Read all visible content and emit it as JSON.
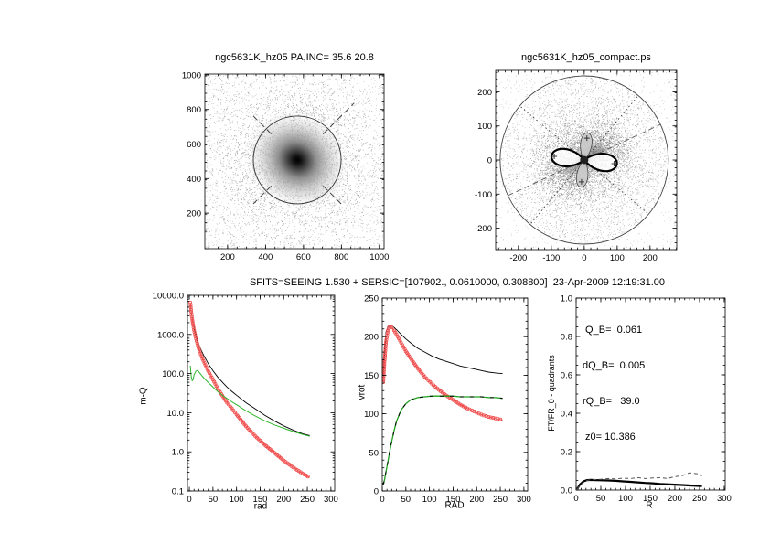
{
  "colors": {
    "black": "#000000",
    "red_symbols": "#f05050",
    "green_line": "#2db52d",
    "green_dashed": "#1fa01f",
    "gray_dashed": "#555555",
    "background": "#ffffff"
  },
  "chart_data": [
    {
      "id": "galaxy_image",
      "type": "scatter",
      "title": "ngc5631K_hz05 PA,INC= 35.6 20.8",
      "xticks": {
        "values": [
          200,
          400,
          600,
          800,
          1000
        ],
        "labels": [
          "200",
          "400",
          "600",
          "800",
          "1000"
        ]
      },
      "yticks": {
        "values": [
          200,
          400,
          600,
          800,
          1000
        ],
        "labels": [
          "200",
          "400",
          "600",
          "800",
          "1000"
        ]
      },
      "description": "grayscale galaxy image: dense dark core with diffuse halo of noise points, fitted circle overlay and dashed diagonal position-angle marks",
      "overlay": {
        "blob_center": [
          567,
          508
        ],
        "circle_radius_data": 232,
        "dash_angles_deg": [
          45,
          135,
          225,
          315
        ]
      }
    },
    {
      "id": "compact",
      "type": "scatter",
      "title": "ngc5631K_hz05_compact.ps",
      "xticks": {
        "values": [
          -200,
          -100,
          0,
          100,
          200
        ],
        "labels": [
          "-200",
          "-100",
          "0",
          "100",
          "200"
        ]
      },
      "yticks": {
        "values": [
          -200,
          -100,
          0,
          100,
          200
        ],
        "labels": [
          "-200",
          "-100",
          "0",
          "100",
          "200"
        ]
      },
      "description": "point cloud concentrated at origin inside circle of radius 250, four-lobed (quadrant) pattern at center with dotted radial lines and dashed diameter",
      "overlay": {
        "circle_radius_data": 250,
        "petal_len_horizontal_data": 100,
        "petal_len_vertical_data": 80,
        "tilt_deg": 7
      }
    },
    {
      "id": "profile",
      "type": "line",
      "title": "SFITS=SEEING 1.530 + SERSIC=[107902., 0.0610000, 0.308800]  23-Apr-2009 12:19:31.00",
      "xlabel": "rad",
      "ylabel": "m-Q",
      "yscale": "log",
      "xlim": [
        0,
        300
      ],
      "ylim": [
        0.1,
        10000
      ],
      "xticks": {
        "values": [
          0,
          50,
          100,
          150,
          200,
          250,
          300
        ],
        "labels": [
          "0",
          "50",
          "100",
          "150",
          "200",
          "250",
          "300"
        ]
      },
      "yticks": {
        "values": [
          0.1,
          1,
          10,
          100,
          1000,
          10000
        ],
        "labels": [
          "0.1",
          "1.0",
          "10.0",
          "100.0",
          "1000.0",
          "10000.0"
        ]
      },
      "series": [
        {
          "name": "total model (black)",
          "color": "#000000",
          "style": "solid",
          "width": 0.9,
          "x": [
            2,
            4,
            6,
            8,
            10,
            14,
            18,
            22,
            26,
            30,
            40,
            50,
            60,
            70,
            80,
            90,
            100,
            120,
            140,
            160,
            180,
            200,
            220,
            240,
            255
          ],
          "y": [
            6500,
            3900,
            2600,
            1900,
            1450,
            950,
            650,
            480,
            375,
            300,
            180,
            118,
            82,
            60,
            45,
            35,
            28,
            18,
            12.5,
            8.6,
            6.2,
            4.6,
            3.6,
            2.9,
            2.6
          ]
        },
        {
          "name": "bulge profile (red symbols)",
          "color": "#f05050",
          "style": "symbols",
          "x": [
            2,
            4,
            6,
            8,
            10,
            14,
            18,
            22,
            26,
            30,
            40,
            50,
            60,
            70,
            80,
            90,
            100,
            120,
            140,
            160,
            180,
            200,
            220,
            240,
            255
          ],
          "y": [
            6500,
            3800,
            2500,
            1750,
            1300,
            780,
            520,
            370,
            270,
            210,
            115,
            70,
            42,
            27,
            18,
            13,
            9,
            4.5,
            2.5,
            1.5,
            0.95,
            0.6,
            0.4,
            0.28,
            0.22
          ]
        },
        {
          "name": "disk profile (green)",
          "color": "#2db52d",
          "style": "solid",
          "width": 1,
          "x": [
            2,
            4,
            6,
            8,
            10,
            14,
            18,
            22,
            26,
            30,
            40,
            50,
            60,
            70,
            80,
            90,
            100,
            120,
            140,
            160,
            180,
            200,
            220,
            240,
            255
          ],
          "y": [
            160,
            85,
            66,
            70,
            92,
            116,
            119,
            104,
            90,
            79,
            59,
            45,
            35,
            28,
            23,
            19,
            16,
            11.2,
            8.2,
            6.2,
            4.9,
            4.0,
            3.3,
            2.8,
            2.5
          ]
        }
      ]
    },
    {
      "id": "rotation",
      "type": "line",
      "xlabel": "RAD",
      "ylabel": "vrot",
      "xlim": [
        0,
        300
      ],
      "ylim": [
        0,
        250
      ],
      "xticks": {
        "values": [
          0,
          50,
          100,
          150,
          200,
          250,
          300
        ],
        "labels": [
          "0",
          "50",
          "100",
          "150",
          "200",
          "250",
          "300"
        ]
      },
      "yticks": {
        "values": [
          0,
          50,
          100,
          150,
          200,
          250
        ],
        "labels": [
          "0",
          "50",
          "100",
          "150",
          "200",
          "250"
        ]
      },
      "series": [
        {
          "name": "total rotation curve (black)",
          "color": "#000000",
          "style": "solid",
          "width": 0.9,
          "x": [
            2,
            5,
            8,
            12,
            16,
            20,
            25,
            30,
            40,
            50,
            60,
            75,
            90,
            105,
            120,
            135,
            150,
            165,
            180,
            195,
            210,
            225,
            240,
            255
          ],
          "y": [
            150,
            186,
            206,
            213,
            215,
            214,
            212,
            209,
            203,
            197,
            192,
            185,
            180,
            175,
            171,
            168,
            165,
            162,
            160,
            158,
            156,
            154,
            153,
            152
          ]
        },
        {
          "name": "bulge rotation (red symbols)",
          "color": "#f05050",
          "style": "symbols",
          "x": [
            2,
            5,
            8,
            12,
            16,
            20,
            25,
            30,
            40,
            50,
            60,
            75,
            90,
            105,
            120,
            135,
            150,
            165,
            180,
            195,
            210,
            225,
            240,
            255
          ],
          "y": [
            141,
            170,
            193,
            208,
            213,
            212,
            208,
            203,
            192,
            181,
            172,
            159,
            148,
            139,
            131,
            124,
            118,
            112,
            107,
            103,
            99,
            96,
            94,
            92
          ]
        },
        {
          "name": "disk rotation (green dashed)",
          "color": "#1fa01f",
          "style": "dashed-mixed",
          "x": [
            2,
            5,
            8,
            12,
            16,
            20,
            25,
            30,
            40,
            50,
            60,
            75,
            90,
            105,
            120,
            135,
            150,
            165,
            180,
            195,
            210,
            225,
            240,
            255
          ],
          "y": [
            8,
            15,
            25,
            38,
            52,
            64,
            78,
            90,
            105,
            113,
            118,
            121,
            122,
            123,
            123,
            123,
            123,
            122,
            122,
            122,
            122,
            121,
            121,
            120
          ]
        }
      ]
    },
    {
      "id": "fourier",
      "type": "line",
      "xlabel": "R",
      "ylabel": "FT/FR_0 - quadrants",
      "xlim": [
        0,
        300
      ],
      "ylim": [
        0,
        1
      ],
      "xticks": {
        "values": [
          0,
          50,
          100,
          150,
          200,
          250,
          300
        ],
        "labels": [
          "0",
          "50",
          "100",
          "150",
          "200",
          "250",
          "300"
        ]
      },
      "yticks": {
        "values": [
          0,
          0.2,
          0.4,
          0.6,
          0.8,
          1.0
        ],
        "labels": [
          "0.0",
          "0.2",
          "0.4",
          "0.6",
          "0.8",
          "1.0"
        ]
      },
      "annotations": [
        " Q_B=  0.061",
        "dQ_B=  0.005",
        "rQ_B=   39.0",
        " z0= 10.386"
      ],
      "series": [
        {
          "name": "quadrant Fourier amplitude (solid)",
          "color": "#000000",
          "style": "solid",
          "width": 2.2,
          "x": [
            2,
            8,
            15,
            22,
            30,
            40,
            50,
            65,
            80,
            95,
            110,
            125,
            140,
            155,
            170,
            185,
            200,
            215,
            230,
            245,
            255
          ],
          "y": [
            0.005,
            0.03,
            0.045,
            0.052,
            0.053,
            0.052,
            0.051,
            0.05,
            0.048,
            0.045,
            0.043,
            0.04,
            0.037,
            0.035,
            0.032,
            0.03,
            0.028,
            0.026,
            0.024,
            0.022,
            0.021
          ]
        },
        {
          "name": "quadrant Fourier amplitude (dashed)",
          "color": "#555555",
          "style": "dashed",
          "width": 1,
          "x": [
            2,
            8,
            15,
            22,
            30,
            40,
            50,
            65,
            80,
            95,
            110,
            125,
            140,
            155,
            170,
            185,
            200,
            215,
            230,
            245,
            255
          ],
          "y": [
            0.005,
            0.025,
            0.04,
            0.05,
            0.055,
            0.055,
            0.056,
            0.06,
            0.058,
            0.062,
            0.06,
            0.065,
            0.06,
            0.063,
            0.065,
            0.06,
            0.07,
            0.075,
            0.09,
            0.085,
            0.075
          ]
        }
      ]
    }
  ]
}
